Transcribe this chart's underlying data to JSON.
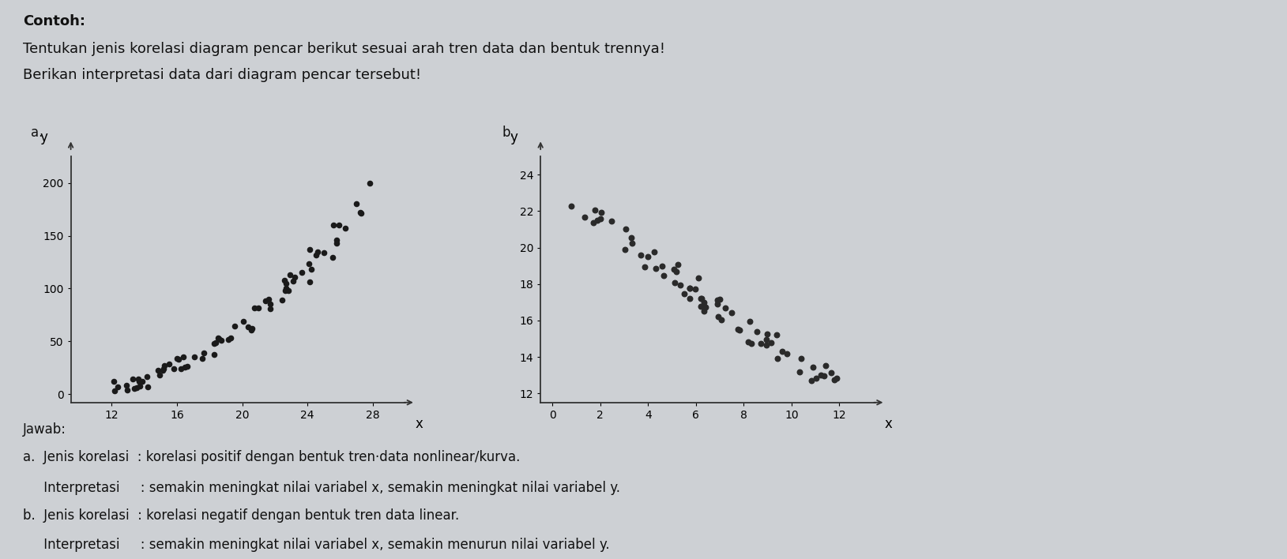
{
  "title_bold": "Contoh:",
  "title_line1": "Tentukan jenis korelasi diagram pencar berikut sesuai arah tren data dan bentuk trennya!",
  "title_line2": "Berikan interpretasi data dari diagram pencar tersebut!",
  "label_a": "a.",
  "label_b": "b.",
  "plot_a": {
    "xlabel": "x",
    "ylabel": "y",
    "xticks": [
      12,
      16,
      20,
      24,
      28
    ],
    "yticks": [
      0,
      50,
      100,
      150,
      200
    ],
    "xlim": [
      9.5,
      30
    ],
    "ylim": [
      -8,
      225
    ],
    "dot_color": "#1a1a1a",
    "dot_size": 20
  },
  "plot_b": {
    "xlabel": "x",
    "ylabel": "y",
    "xticks": [
      0,
      2,
      4,
      6,
      8,
      10,
      12
    ],
    "yticks": [
      12,
      14,
      16,
      18,
      20,
      22,
      24
    ],
    "xlim": [
      -0.5,
      13.5
    ],
    "ylim": [
      11.5,
      25
    ],
    "dot_color": "#2a2a2a",
    "dot_size": 22
  },
  "jawab_title": "Jawab:",
  "jawab_a_line1": "a.  Jenis korelasi  : korelasi positif dengan bentuk tren·data nonlinear/kurva.",
  "jawab_a_line2": "     Interpretasi     : semakin meningkat nilai variabel x, semakin meningkat nilai variabel y.",
  "jawab_b_line1": "b.  Jenis korelasi  : korelasi negatif dengan bentuk tren data linear.",
  "jawab_b_line2": "     Interpretasi     : semakin meningkat nilai variabel x, semakin menurun nilai variabel y.",
  "bg_color": "#cdd0d4",
  "text_color": "#111111",
  "font_size_contoh": 13,
  "font_size_title": 13,
  "font_size_label": 12,
  "font_size_tick": 10,
  "font_size_jawab": 12,
  "font_size_axis_label": 12
}
